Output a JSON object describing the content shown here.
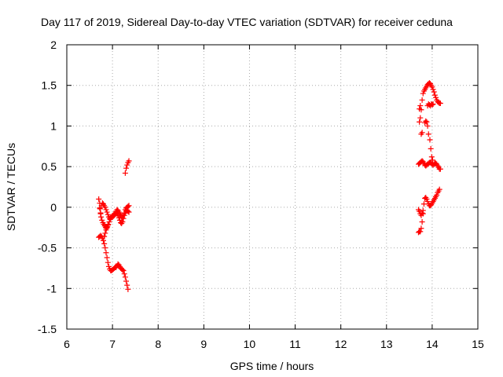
{
  "chart_data": {
    "type": "scatter",
    "title": "Day 117 of 2019, Sidereal Day-to-day VTEC variation (SDTVAR) for receiver ceduna",
    "xlabel": "GPS time / hours",
    "ylabel": "SDTVAR / TECUs",
    "xlim": [
      6,
      15
    ],
    "ylim": [
      -1.5,
      2
    ],
    "xticks": [
      6,
      7,
      8,
      9,
      10,
      11,
      12,
      13,
      14,
      15
    ],
    "xtick_labels": [
      "6",
      "7",
      "8",
      "9",
      "10",
      "11",
      "12",
      "13",
      "14",
      "15"
    ],
    "yticks": [
      -1.5,
      -1,
      -0.5,
      0,
      0.5,
      1,
      1.5,
      2
    ],
    "ytick_labels": [
      "-1.5",
      "-1",
      "-0.5",
      "0",
      "0.5",
      "1",
      "1.5",
      "2"
    ],
    "grid": true,
    "marker": "+",
    "color": "#ff0000",
    "series": [
      {
        "name": "ceduna",
        "points": [
          [
            6.7,
            0.1
          ],
          [
            6.72,
            0.05
          ],
          [
            6.73,
            -0.02
          ],
          [
            6.74,
            -0.08
          ],
          [
            6.75,
            -0.12
          ],
          [
            6.77,
            -0.16
          ],
          [
            6.79,
            -0.19
          ],
          [
            6.81,
            -0.21
          ],
          [
            6.83,
            -0.23
          ],
          [
            6.85,
            -0.25
          ],
          [
            6.87,
            -0.26
          ],
          [
            6.89,
            -0.24
          ],
          [
            6.91,
            -0.21
          ],
          [
            6.93,
            -0.18
          ],
          [
            6.95,
            -0.15
          ],
          [
            6.97,
            -0.13
          ],
          [
            6.99,
            -0.11
          ],
          [
            7.01,
            -0.1
          ],
          [
            7.03,
            -0.09
          ],
          [
            7.05,
            -0.08
          ],
          [
            7.08,
            -0.07
          ],
          [
            7.1,
            -0.08
          ],
          [
            7.12,
            -0.1
          ],
          [
            7.14,
            -0.13
          ],
          [
            7.16,
            -0.16
          ],
          [
            7.18,
            -0.19
          ],
          [
            7.2,
            -0.2
          ],
          [
            7.22,
            -0.18
          ],
          [
            7.24,
            -0.14
          ],
          [
            7.26,
            -0.1
          ],
          [
            7.28,
            -0.07
          ],
          [
            7.3,
            -0.05
          ],
          [
            7.32,
            -0.04
          ],
          [
            7.34,
            -0.05
          ],
          [
            7.36,
            -0.06
          ],
          [
            6.7,
            -0.37
          ],
          [
            6.72,
            -0.36
          ],
          [
            6.74,
            -0.35
          ],
          [
            6.76,
            -0.36
          ],
          [
            6.78,
            -0.38
          ],
          [
            6.8,
            -0.41
          ],
          [
            6.82,
            -0.45
          ],
          [
            6.84,
            -0.5
          ],
          [
            6.86,
            -0.56
          ],
          [
            6.88,
            -0.62
          ],
          [
            6.9,
            -0.68
          ],
          [
            6.92,
            -0.73
          ],
          [
            6.94,
            -0.76
          ],
          [
            6.96,
            -0.78
          ],
          [
            6.98,
            -0.78
          ],
          [
            7.0,
            -0.77
          ],
          [
            7.02,
            -0.76
          ],
          [
            7.04,
            -0.75
          ],
          [
            7.06,
            -0.74
          ],
          [
            7.08,
            -0.74
          ],
          [
            7.1,
            -0.72
          ],
          [
            7.12,
            -0.7
          ],
          [
            7.14,
            -0.71
          ],
          [
            7.16,
            -0.73
          ],
          [
            7.18,
            -0.75
          ],
          [
            7.2,
            -0.76
          ],
          [
            7.22,
            -0.77
          ],
          [
            7.24,
            -0.78
          ],
          [
            7.26,
            -0.82
          ],
          [
            7.28,
            -0.86
          ],
          [
            7.3,
            -0.91
          ],
          [
            7.32,
            -0.96
          ],
          [
            7.34,
            -1.01
          ],
          [
            6.72,
            -0.01
          ],
          [
            6.74,
            -0.07
          ],
          [
            6.76,
            0.02
          ],
          [
            6.78,
            0.05
          ],
          [
            6.8,
            0.04
          ],
          [
            6.82,
            0.02
          ],
          [
            6.84,
            0.0
          ],
          [
            6.86,
            -0.03
          ],
          [
            6.88,
            -0.06
          ],
          [
            6.9,
            -0.09
          ],
          [
            6.92,
            -0.12
          ],
          [
            6.94,
            -0.14
          ],
          [
            6.96,
            -0.13
          ],
          [
            6.98,
            -0.12
          ],
          [
            7.0,
            -0.12
          ],
          [
            7.02,
            -0.11
          ],
          [
            7.04,
            -0.1
          ],
          [
            7.06,
            -0.08
          ],
          [
            7.08,
            -0.05
          ],
          [
            7.1,
            -0.03
          ],
          [
            7.12,
            -0.04
          ],
          [
            7.14,
            -0.06
          ],
          [
            7.16,
            -0.08
          ],
          [
            7.18,
            -0.1
          ],
          [
            7.2,
            -0.12
          ],
          [
            7.22,
            -0.12
          ],
          [
            7.24,
            -0.1
          ],
          [
            7.26,
            -0.07
          ],
          [
            7.28,
            -0.03
          ],
          [
            7.3,
            -0.01
          ],
          [
            7.32,
            0.0
          ],
          [
            7.34,
            0.01
          ],
          [
            7.36,
            0.02
          ],
          [
            6.82,
            -0.36
          ],
          [
            6.84,
            -0.32
          ],
          [
            6.86,
            -0.28
          ],
          [
            6.88,
            -0.25
          ],
          [
            6.9,
            -0.22
          ],
          [
            7.28,
            0.42
          ],
          [
            7.3,
            0.48
          ],
          [
            7.32,
            0.52
          ],
          [
            7.34,
            0.55
          ],
          [
            7.36,
            0.57
          ],
          [
            13.7,
            -0.31
          ],
          [
            13.72,
            -0.3
          ],
          [
            13.74,
            -0.3
          ],
          [
            13.76,
            -0.26
          ],
          [
            13.78,
            -0.18
          ],
          [
            13.8,
            -0.08
          ],
          [
            13.82,
            0.04
          ],
          [
            13.84,
            0.11
          ],
          [
            13.86,
            0.12
          ],
          [
            13.88,
            0.1
          ],
          [
            13.9,
            0.07
          ],
          [
            13.92,
            0.04
          ],
          [
            13.94,
            0.02
          ],
          [
            13.96,
            0.02
          ],
          [
            13.98,
            0.03
          ],
          [
            14.0,
            0.05
          ],
          [
            14.02,
            0.07
          ],
          [
            14.04,
            0.09
          ],
          [
            14.06,
            0.11
          ],
          [
            14.08,
            0.13
          ],
          [
            14.1,
            0.15
          ],
          [
            14.12,
            0.18
          ],
          [
            14.14,
            0.2
          ],
          [
            14.16,
            0.22
          ],
          [
            13.7,
            -0.03
          ],
          [
            13.72,
            -0.05
          ],
          [
            13.74,
            -0.08
          ],
          [
            13.76,
            -0.1
          ],
          [
            13.78,
            -0.07
          ],
          [
            13.8,
            -0.04
          ],
          [
            13.7,
            0.53
          ],
          [
            13.72,
            0.54
          ],
          [
            13.74,
            0.55
          ],
          [
            13.76,
            0.56
          ],
          [
            13.78,
            0.57
          ],
          [
            13.8,
            0.56
          ],
          [
            13.82,
            0.54
          ],
          [
            13.84,
            0.52
          ],
          [
            13.86,
            0.51
          ],
          [
            13.88,
            0.52
          ],
          [
            13.9,
            0.53
          ],
          [
            13.92,
            0.54
          ],
          [
            13.94,
            0.55
          ],
          [
            13.96,
            0.55
          ],
          [
            13.98,
            0.54
          ],
          [
            14.0,
            0.53
          ],
          [
            14.02,
            0.52
          ],
          [
            14.04,
            0.53
          ],
          [
            14.06,
            0.54
          ],
          [
            14.08,
            0.54
          ],
          [
            14.1,
            0.53
          ],
          [
            14.12,
            0.51
          ],
          [
            14.14,
            0.49
          ],
          [
            14.16,
            0.47
          ],
          [
            14.18,
            0.47
          ],
          [
            13.72,
            1.05
          ],
          [
            13.74,
            1.1
          ],
          [
            13.76,
            1.2
          ],
          [
            13.78,
            1.32
          ],
          [
            13.8,
            1.4
          ],
          [
            13.82,
            1.43
          ],
          [
            13.84,
            1.45
          ],
          [
            13.86,
            1.47
          ],
          [
            13.88,
            1.49
          ],
          [
            13.9,
            1.51
          ],
          [
            13.92,
            1.52
          ],
          [
            13.94,
            1.53
          ],
          [
            13.96,
            1.52
          ],
          [
            13.98,
            1.5
          ],
          [
            14.0,
            1.48
          ],
          [
            14.02,
            1.45
          ],
          [
            14.04,
            1.42
          ],
          [
            14.06,
            1.38
          ],
          [
            14.08,
            1.35
          ],
          [
            14.1,
            1.32
          ],
          [
            14.12,
            1.3
          ],
          [
            14.14,
            1.29
          ],
          [
            14.16,
            1.28
          ],
          [
            14.18,
            1.28
          ],
          [
            13.72,
            1.21
          ],
          [
            13.74,
            1.25
          ],
          [
            13.76,
            0.9
          ],
          [
            13.78,
            0.92
          ],
          [
            13.84,
            1.04
          ],
          [
            13.86,
            1.06
          ],
          [
            13.88,
            1.05
          ],
          [
            13.9,
            1.25
          ],
          [
            13.92,
            1.27
          ],
          [
            13.94,
            1.26
          ],
          [
            13.96,
            1.25
          ],
          [
            13.98,
            1.27
          ],
          [
            14.0,
            1.26
          ],
          [
            14.02,
            1.27
          ],
          [
            13.9,
            1.0
          ],
          [
            13.92,
            0.9
          ],
          [
            13.95,
            0.83
          ],
          [
            13.97,
            0.72
          ],
          [
            13.99,
            0.62
          ],
          [
            14.01,
            0.58
          ]
        ]
      }
    ]
  }
}
